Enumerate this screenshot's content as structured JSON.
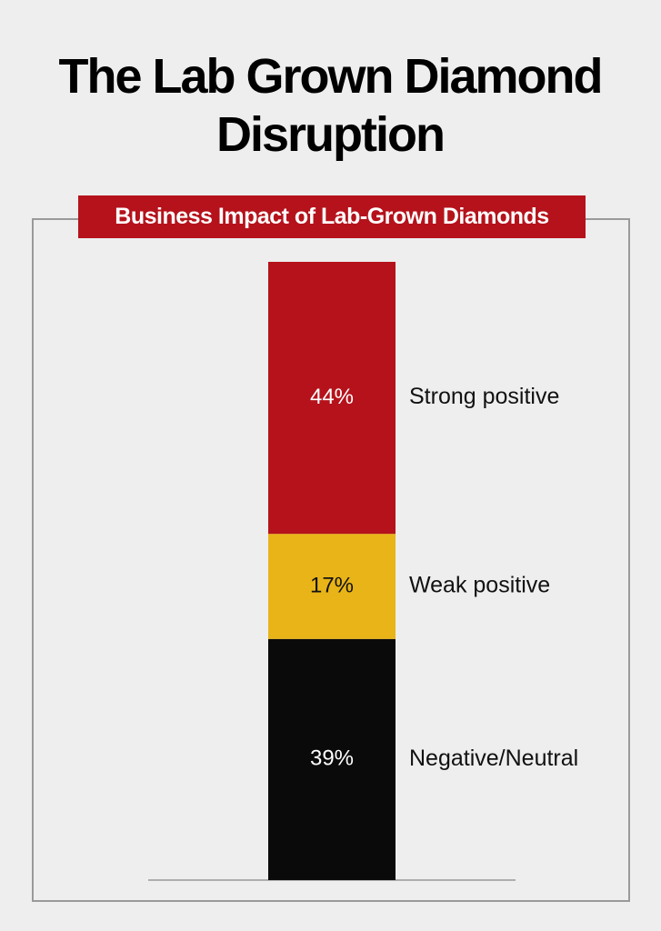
{
  "chart_data": {
    "type": "stacked-bar",
    "title": "The Lab Grown Diamond Disruption",
    "subtitle": "Business Impact of Lab-Grown Diamonds",
    "series": [
      {
        "name": "Negative/Neutral",
        "color": "#0a0a0a",
        "values": [
          39
        ],
        "value_labels": [
          "39%"
        ]
      },
      {
        "name": "Weak positive",
        "color": "#e8b417",
        "values": [
          17
        ],
        "value_labels": [
          "17%"
        ]
      },
      {
        "name": "Strong positive",
        "color": "#b5121b",
        "values": [
          44
        ],
        "value_labels": [
          "44%"
        ]
      }
    ]
  }
}
